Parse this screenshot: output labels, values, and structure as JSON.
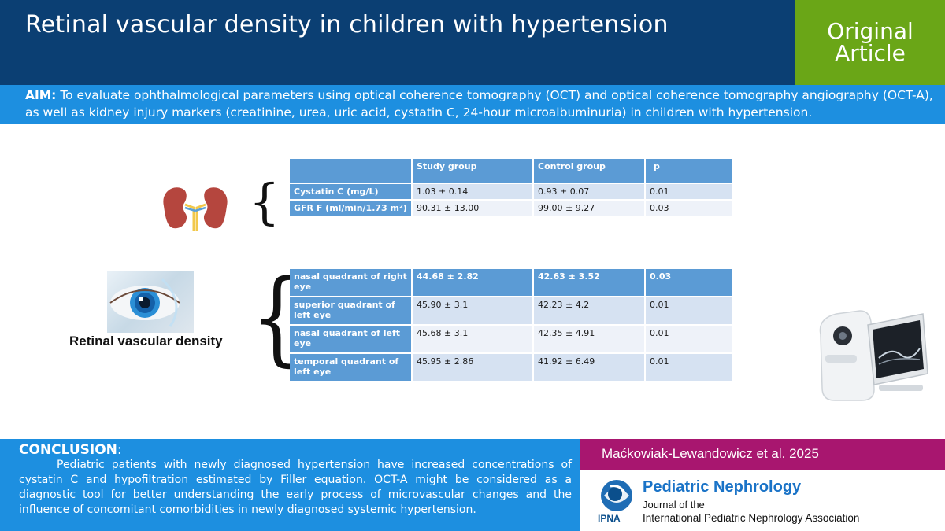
{
  "header": {
    "title": "Retinal vascular density in children with hypertension",
    "badge_line1": "Original",
    "badge_line2": "Article"
  },
  "aim": {
    "label": "AIM:",
    "text": " To evaluate ophthalmological parameters using optical coherence tomography (OCT) and optical coherence tomography angiography (OCT-A), as well as kidney injury markers (creatinine, urea, uric acid, cystatin C, 24-hour microalbuminuria) in children with hypertension."
  },
  "table_kidney": {
    "headers": [
      "",
      "Study group",
      "Control group",
      "p"
    ],
    "rows": [
      {
        "label": "Cystatin C (mg/L)",
        "study": "1.03 ± 0.14",
        "control": "0.93 ± 0.07",
        "p": "0.01"
      },
      {
        "label": "GFR F (ml/min/1.73 m²)",
        "study": "90.31 ± 13.00",
        "control": "99.00 ± 9.27",
        "p": "0.03"
      }
    ]
  },
  "table_retina": {
    "rows": [
      {
        "label": "nasal quadrant of right eye",
        "study": "44.68 ± 2.82",
        "control": "42.63 ± 3.52",
        "p": "0.03"
      },
      {
        "label": "superior quadrant of left eye",
        "study": "45.90 ± 3.1",
        "control": "42.23 ± 4.2",
        "p": "0.01"
      },
      {
        "label": "nasal quadrant of left eye",
        "study": "45.68 ± 3.1",
        "control": "42.35 ± 4.91",
        "p": "0.01"
      },
      {
        "label": "temporal quadrant of left eye",
        "study": "45.95 ± 2.86",
        "control": "41.92 ± 6.49",
        "p": "0.01"
      }
    ]
  },
  "retinal_label": "Retinal vascular density",
  "conclusion": {
    "heading": "CONCLUSION",
    "colon": ":",
    "text": "Pediatric patients with newly diagnosed hypertension have increased concentrations of cystatin C and hypofiltration estimated by Filler equation. OCT-A might be considered as a diagnostic tool for better understanding the early process of microvascular changes and the influence of concomitant comorbidities in newly diagnosed systemic hypertension."
  },
  "author": "Maćkowiak-Lewandowicz et al. 2025",
  "journal": {
    "name": "Pediatric Nephrology",
    "sub1": "Journal of the",
    "sub2": "International Pediatric Nephrology Association",
    "logo_text": "IPNA"
  },
  "colors": {
    "navy": "#0b3f73",
    "blue": "#1d8fe0",
    "green": "#6aa617",
    "magenta": "#a8166f",
    "table_header": "#5b9bd5"
  },
  "icons": [
    "kidney-icon",
    "eye-photo",
    "oct-device-image",
    "ipna-logo"
  ]
}
